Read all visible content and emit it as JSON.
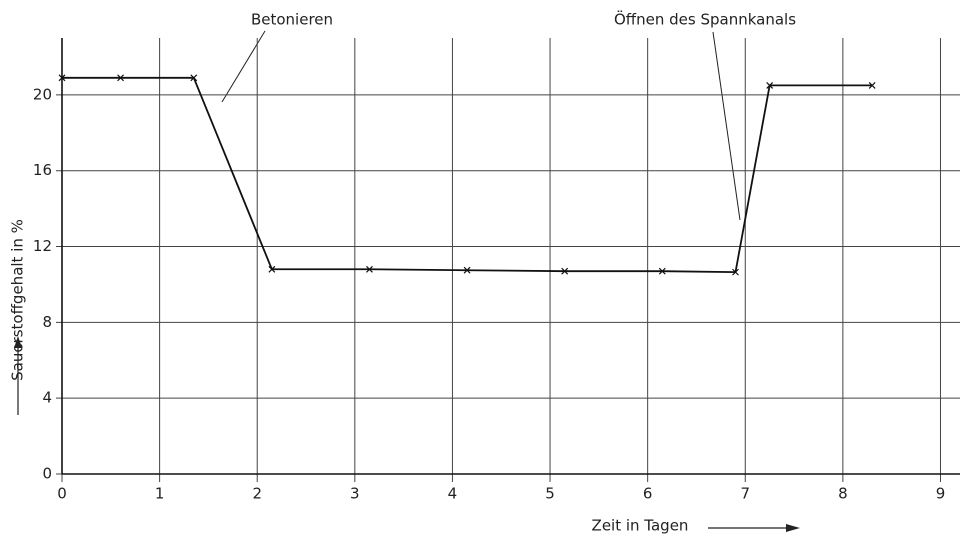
{
  "chart_data": {
    "type": "line",
    "x_label": "Zeit in Tagen",
    "y_label": "Sauerstoffgehalt in %",
    "annotations": [
      "Betonieren",
      "Öffnen des Spannkanals"
    ],
    "x": [
      0,
      0.6,
      1.35,
      2.15,
      3.15,
      4.15,
      5.15,
      6.15,
      6.9,
      7.25,
      8.3
    ],
    "series": [
      {
        "color": "#111",
        "values": [
          20.9,
          20.9,
          20.9,
          10.8,
          10.8,
          10.75,
          10.7,
          10.7,
          10.65,
          20.5,
          20.5
        ]
      }
    ],
    "xlim": [
      0,
      9.2
    ],
    "ylim": [
      0,
      23
    ],
    "xticks": [
      0,
      1,
      2,
      3,
      4,
      5,
      6,
      7,
      8,
      9
    ],
    "yticks": [
      0,
      4,
      8,
      12,
      16,
      20
    ],
    "grid": true
  }
}
